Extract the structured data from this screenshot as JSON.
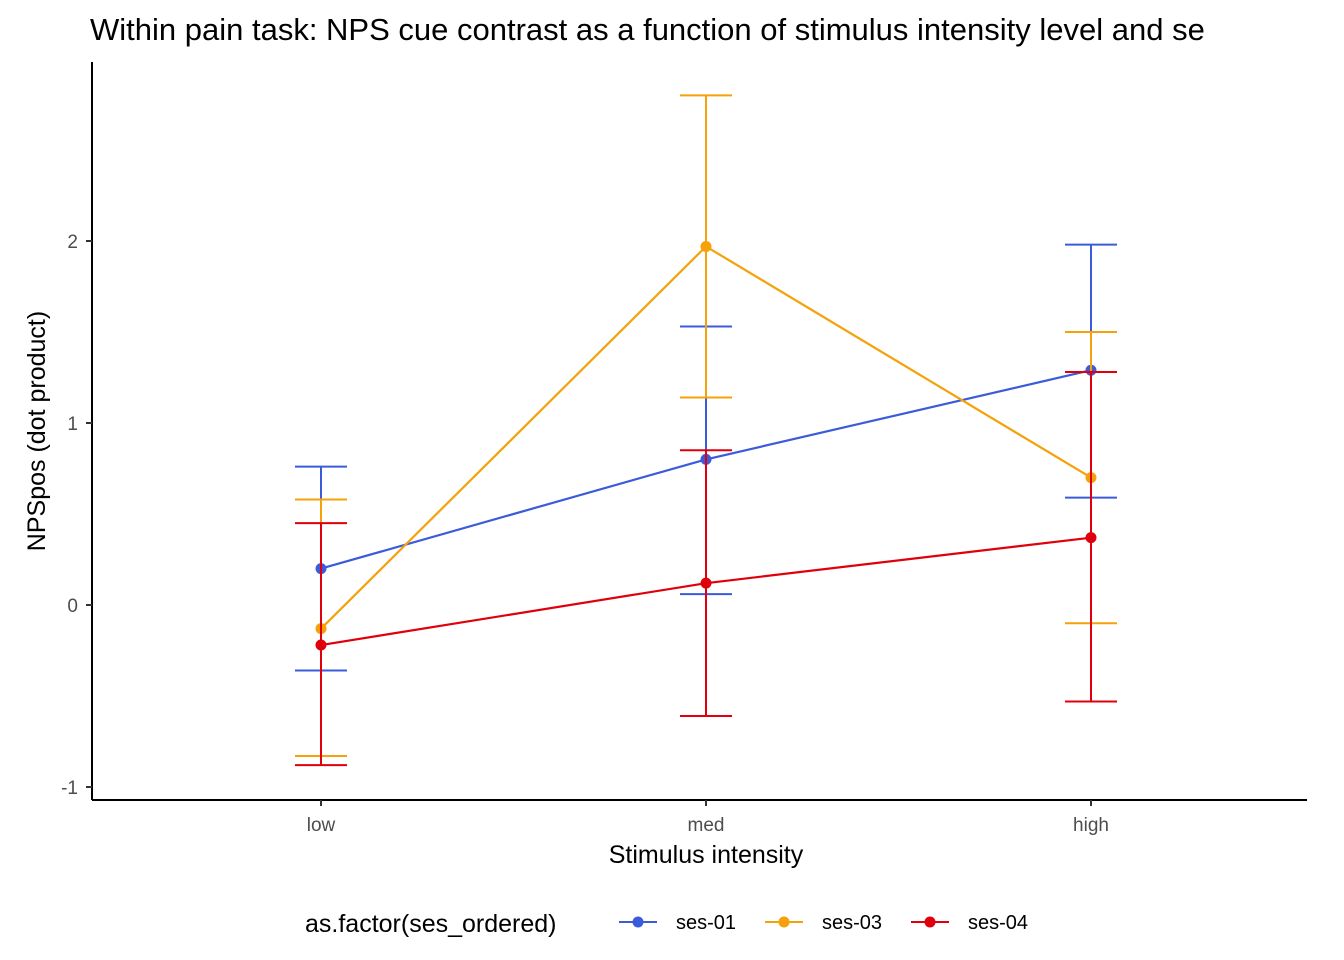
{
  "chart_data": {
    "type": "line",
    "title": "Within pain task: NPS cue contrast as a function of stimulus intensity level and se",
    "xlabel": "Stimulus intensity",
    "ylabel": "NPSpos (dot product)",
    "categories": [
      "low",
      "med",
      "high"
    ],
    "ylim": [
      -1.05,
      2.95
    ],
    "yticks": [
      -1,
      0,
      1,
      2
    ],
    "ytick_labels": [
      "-1",
      "0",
      "1",
      "2"
    ],
    "grid": false,
    "legend": {
      "title": "as.factor(ses_ordered)",
      "position": "bottom"
    },
    "series": [
      {
        "name": "ses-01",
        "color": "#3b5bdb",
        "values": [
          0.2,
          0.8,
          1.29
        ],
        "lower": [
          -0.36,
          0.06,
          0.59
        ],
        "upper": [
          0.76,
          1.53,
          1.98
        ]
      },
      {
        "name": "ses-03",
        "color": "#f5a10a",
        "values": [
          -0.13,
          1.97,
          0.7
        ],
        "lower": [
          -0.83,
          1.14,
          -0.1
        ],
        "upper": [
          0.58,
          2.8,
          1.5
        ]
      },
      {
        "name": "ses-04",
        "color": "#e0000b",
        "values": [
          -0.22,
          0.12,
          0.37
        ],
        "lower": [
          -0.88,
          -0.61,
          -0.53
        ],
        "upper": [
          0.45,
          0.85,
          1.28
        ]
      }
    ]
  }
}
